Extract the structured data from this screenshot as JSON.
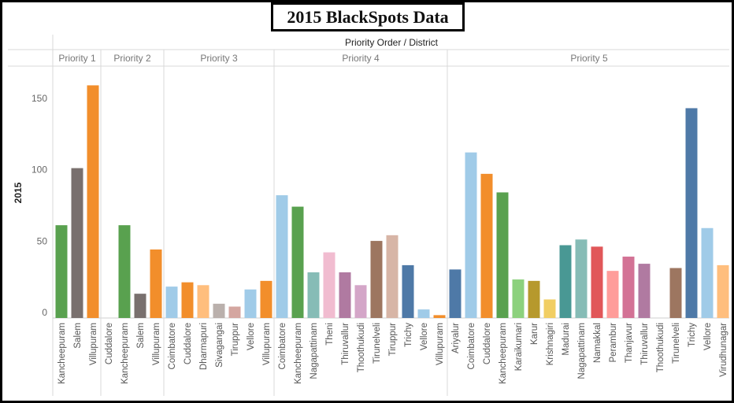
{
  "chart_data": {
    "type": "bar",
    "title": "2015 BlackSpots Data",
    "column_header": "Priority Order / District",
    "ylabel": "2015",
    "ylim": [
      0,
      175
    ],
    "yticks": [
      0,
      50,
      100,
      150
    ],
    "grid": false,
    "groups": [
      {
        "name": "Priority 1",
        "bars": [
          {
            "district": "Kancheepuram",
            "value": 65,
            "color": "#59a14f"
          },
          {
            "district": "Salem",
            "value": 105,
            "color": "#79706e"
          },
          {
            "district": "Villupuram",
            "value": 163,
            "color": "#f28e2b"
          }
        ]
      },
      {
        "name": "Priority 2",
        "bars": [
          {
            "district": "Cuddalore",
            "value": 0,
            "color": "#f28e2b"
          },
          {
            "district": "Kancheepuram",
            "value": 65,
            "color": "#59a14f"
          },
          {
            "district": "Salem",
            "value": 17,
            "color": "#79706e"
          },
          {
            "district": "Villupuram",
            "value": 48,
            "color": "#f28e2b"
          }
        ]
      },
      {
        "name": "Priority 3",
        "bars": [
          {
            "district": "Coimbatore",
            "value": 22,
            "color": "#a0cbe8"
          },
          {
            "district": "Cuddalore",
            "value": 25,
            "color": "#f28e2b"
          },
          {
            "district": "Dharmapuri",
            "value": 23,
            "color": "#ffbe7d"
          },
          {
            "district": "Sivagangai",
            "value": 10,
            "color": "#bab0ac"
          },
          {
            "district": "Tiruppur",
            "value": 8,
            "color": "#d4a6a0"
          },
          {
            "district": "Vellore",
            "value": 20,
            "color": "#a0cbe8"
          },
          {
            "district": "Villupuram",
            "value": 26,
            "color": "#f28e2b"
          }
        ]
      },
      {
        "name": "Priority 4",
        "bars": [
          {
            "district": "Coimbatore",
            "value": 86,
            "color": "#a0cbe8"
          },
          {
            "district": "Kancheepuram",
            "value": 78,
            "color": "#59a14f"
          },
          {
            "district": "Nagapattinam",
            "value": 32,
            "color": "#86bcb6"
          },
          {
            "district": "Theni",
            "value": 46,
            "color": "#f1bcd0"
          },
          {
            "district": "Thiruvallur",
            "value": 32,
            "color": "#b07aa1"
          },
          {
            "district": "Thoothukudi",
            "value": 23,
            "color": "#d4a6c8"
          },
          {
            "district": "Tirunelveli",
            "value": 54,
            "color": "#9d7660"
          },
          {
            "district": "Tiruppur",
            "value": 58,
            "color": "#d7b5a6"
          },
          {
            "district": "Trichy",
            "value": 37,
            "color": "#4e79a7"
          },
          {
            "district": "Vellore",
            "value": 6,
            "color": "#a0cbe8"
          },
          {
            "district": "Villupuram",
            "value": 2,
            "color": "#f28e2b"
          }
        ]
      },
      {
        "name": "Priority 5",
        "bars": [
          {
            "district": "Ariyalur",
            "value": 34,
            "color": "#4e79a7"
          },
          {
            "district": "Coimbatore",
            "value": 116,
            "color": "#a0cbe8"
          },
          {
            "district": "Cuddalore",
            "value": 101,
            "color": "#f28e2b"
          },
          {
            "district": "Kancheepuram",
            "value": 88,
            "color": "#59a14f"
          },
          {
            "district": "Karaikumari",
            "value": 27,
            "color": "#8cd17d"
          },
          {
            "district": "Karur",
            "value": 26,
            "color": "#b6992d"
          },
          {
            "district": "Krishnagiri",
            "value": 13,
            "color": "#f1ce63"
          },
          {
            "district": "Madurai",
            "value": 51,
            "color": "#499894"
          },
          {
            "district": "Nagapattinam",
            "value": 55,
            "color": "#86bcb6"
          },
          {
            "district": "Namakkal",
            "value": 50,
            "color": "#e15759"
          },
          {
            "district": "Perambur",
            "value": 33,
            "color": "#ff9d9a"
          },
          {
            "district": "Thanjavur",
            "value": 43,
            "color": "#d37295"
          },
          {
            "district": "Thiruvallur",
            "value": 38,
            "color": "#b07aa1"
          },
          {
            "district": "Thoothukudi",
            "value": 0,
            "color": "#d4a6c8"
          },
          {
            "district": "Tirunelveli",
            "value": 35,
            "color": "#9d7660"
          },
          {
            "district": "Trichy",
            "value": 147,
            "color": "#4e79a7"
          },
          {
            "district": "Vellore",
            "value": 63,
            "color": "#a0cbe8"
          },
          {
            "district": "Virudhunagar",
            "value": 37,
            "color": "#ffbe7d"
          }
        ]
      }
    ]
  }
}
